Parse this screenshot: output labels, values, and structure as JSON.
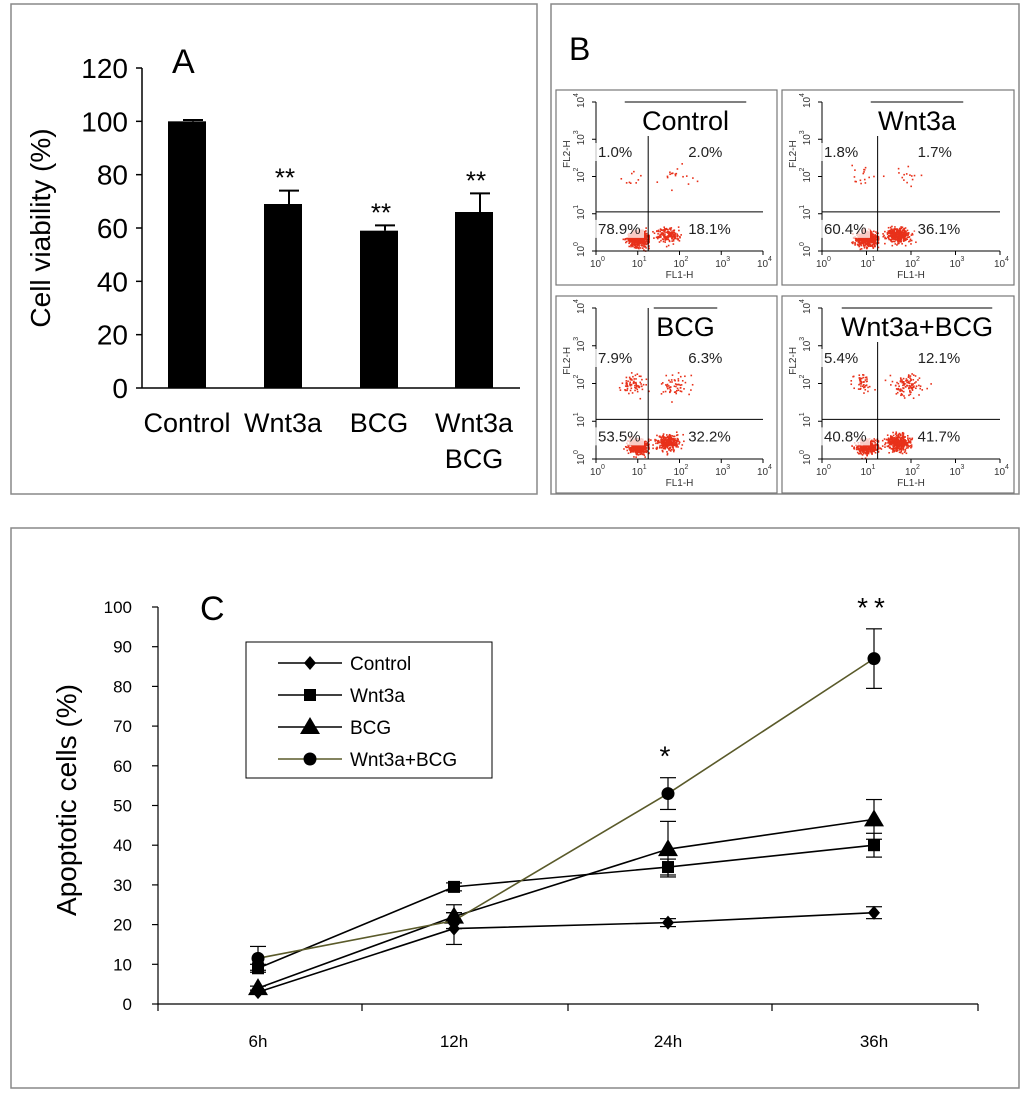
{
  "chart_data": [
    {
      "panel": "A",
      "type": "bar",
      "ylabel": "Cell viability (%)",
      "ylim": [
        0,
        120
      ],
      "yticks": [
        0,
        20,
        40,
        60,
        80,
        100,
        120
      ],
      "categories": [
        {
          "lines": [
            "Control"
          ]
        },
        {
          "lines": [
            "Wnt3a"
          ]
        },
        {
          "lines": [
            "BCG"
          ]
        },
        {
          "lines": [
            "Wnt3a",
            "BCG"
          ]
        }
      ],
      "values": [
        100,
        69,
        59,
        66
      ],
      "errors": [
        0.5,
        5,
        2,
        7
      ],
      "significance": [
        "",
        "**",
        "**",
        "**"
      ]
    },
    {
      "panel": "B",
      "type": "scatter",
      "xlabel": "FL1-H",
      "ylabel": "FL2-H",
      "axis_range_log": [
        0,
        4
      ],
      "tick_labels": [
        "10",
        "10",
        "10",
        "10",
        "10"
      ],
      "tick_exponents": [
        "0",
        "1",
        "2",
        "3",
        "4"
      ],
      "plots": [
        {
          "title": "Control",
          "quadrants": {
            "upper_left": "1.0%",
            "upper_right": "2.0%",
            "lower_left": "78.9%",
            "lower_right": "18.1%"
          }
        },
        {
          "title": "Wnt3a",
          "quadrants": {
            "upper_left": "1.8%",
            "upper_right": "1.7%",
            "lower_left": "60.4%",
            "lower_right": "36.1%"
          }
        },
        {
          "title": "BCG",
          "quadrants": {
            "upper_left": "7.9%",
            "upper_right": "6.3%",
            "lower_left": "53.5%",
            "lower_right": "32.2%"
          }
        },
        {
          "title": "Wnt3a+BCG",
          "quadrants": {
            "upper_left": "5.4%",
            "upper_right": "12.1%",
            "lower_left": "40.8%",
            "lower_right": "41.7%"
          }
        }
      ]
    },
    {
      "panel": "C",
      "type": "line",
      "ylabel": "Apoptotic cells (%)",
      "ylim": [
        0,
        100
      ],
      "yticks": [
        0,
        10,
        20,
        30,
        40,
        50,
        60,
        70,
        80,
        90,
        100
      ],
      "categories": [
        "6h",
        "12h",
        "24h",
        "36h"
      ],
      "series": [
        {
          "name": "Control",
          "marker": "diamond",
          "color": "#000000",
          "values": [
            3,
            19,
            20.5,
            23
          ],
          "errors": [
            0.5,
            4,
            1,
            1.5
          ]
        },
        {
          "name": "Wnt3a",
          "marker": "square",
          "color": "#000000",
          "values": [
            9,
            29.5,
            34.5,
            40
          ],
          "errors": [
            1,
            1,
            2,
            3
          ]
        },
        {
          "name": "BCG",
          "marker": "triangle",
          "color": "#000000",
          "values": [
            4,
            22,
            39,
            46.5
          ],
          "errors": [
            0.5,
            3,
            7,
            5
          ]
        },
        {
          "name": "Wnt3a+BCG",
          "marker": "circle",
          "color": "#5a5a2a",
          "values": [
            11.5,
            21,
            53,
            87
          ],
          "errors": [
            3,
            2,
            4,
            7.5
          ]
        }
      ],
      "significance": [
        "",
        "",
        "*",
        "**"
      ]
    }
  ]
}
